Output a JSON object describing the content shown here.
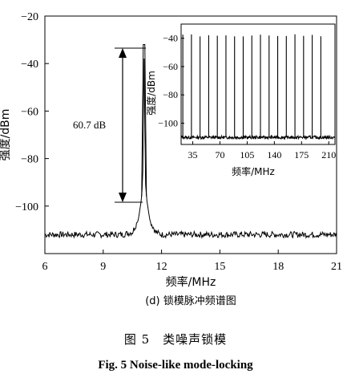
{
  "chart_data": [
    {
      "type": "line",
      "panel_label": "(d) 锁模脉冲频谱图",
      "xlabel": "频率/MHz",
      "ylabel": "强度/dBm",
      "xlim": [
        6,
        21
      ],
      "ylim": [
        -120,
        -20
      ],
      "xticks": [
        6,
        9,
        12,
        15,
        18,
        21
      ],
      "yticks": [
        -20,
        -40,
        -60,
        -80,
        -100
      ],
      "peak": {
        "x": 11.1,
        "y": -32
      },
      "noise_floor": -112,
      "annotation": {
        "text": "60.7 dB",
        "from": -32,
        "to": -95
      },
      "series": [
        {
          "x": [
            6,
            8,
            9,
            10,
            10.5,
            10.8,
            10.95,
            11.03,
            11.1,
            11.17,
            11.25,
            11.4,
            11.7,
            12,
            14,
            16,
            18,
            21
          ],
          "y": [
            -112,
            -112,
            -112,
            -112,
            -111,
            -106,
            -98,
            -90,
            -32,
            -90,
            -98,
            -106,
            -111,
            -112,
            -112,
            -112,
            -112,
            -112
          ]
        }
      ]
    },
    {
      "type": "line",
      "role": "inset",
      "xlabel": "频率/MHz",
      "ylabel": "强度/dBm",
      "xlim": [
        20,
        218
      ],
      "ylim": [
        -115,
        -30
      ],
      "xticks": [
        35,
        70,
        105,
        140,
        175,
        210
      ],
      "yticks": [
        -40,
        -60,
        -80,
        -100
      ],
      "comb": {
        "spacing": 11.1,
        "first": 22.2,
        "count": 17,
        "peak": -38,
        "floor": -110
      }
    }
  ],
  "caption": {
    "cn": "图 5　类噪声锁模",
    "en_prefix": "Fig. 5",
    "en_title": "Noise-like mode-locking"
  }
}
